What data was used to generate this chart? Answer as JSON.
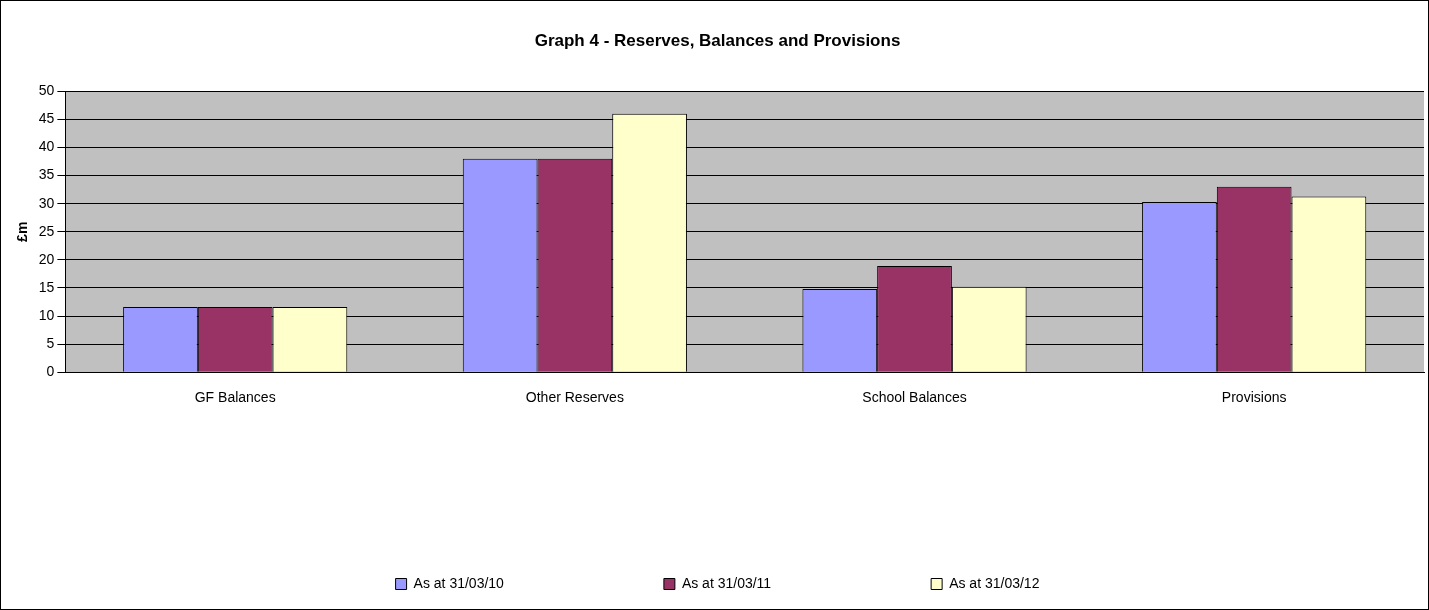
{
  "chart_data": {
    "type": "bar",
    "title": "Graph 4 - Reserves, Balances and Provisions",
    "ylabel": "£m",
    "categories": [
      "GF Balances",
      "Other Reserves",
      "School Balances",
      "Provisions"
    ],
    "series": [
      {
        "name": "As at 31/03/10",
        "color": "#9999ff",
        "values": [
          11.6,
          38,
          14.8,
          30.3
        ]
      },
      {
        "name": "As at 31/03/11",
        "color": "#993366",
        "values": [
          11.6,
          38,
          18.9,
          33
        ]
      },
      {
        "name": "As at 31/03/12",
        "color": "#ffffcc",
        "values": [
          11.6,
          46,
          15.2,
          31.3
        ]
      }
    ],
    "ylim": [
      0,
      50
    ],
    "yticks": [
      0,
      5,
      10,
      15,
      20,
      25,
      30,
      35,
      40,
      45,
      50
    ],
    "grid": "y",
    "legend": "bottom"
  }
}
